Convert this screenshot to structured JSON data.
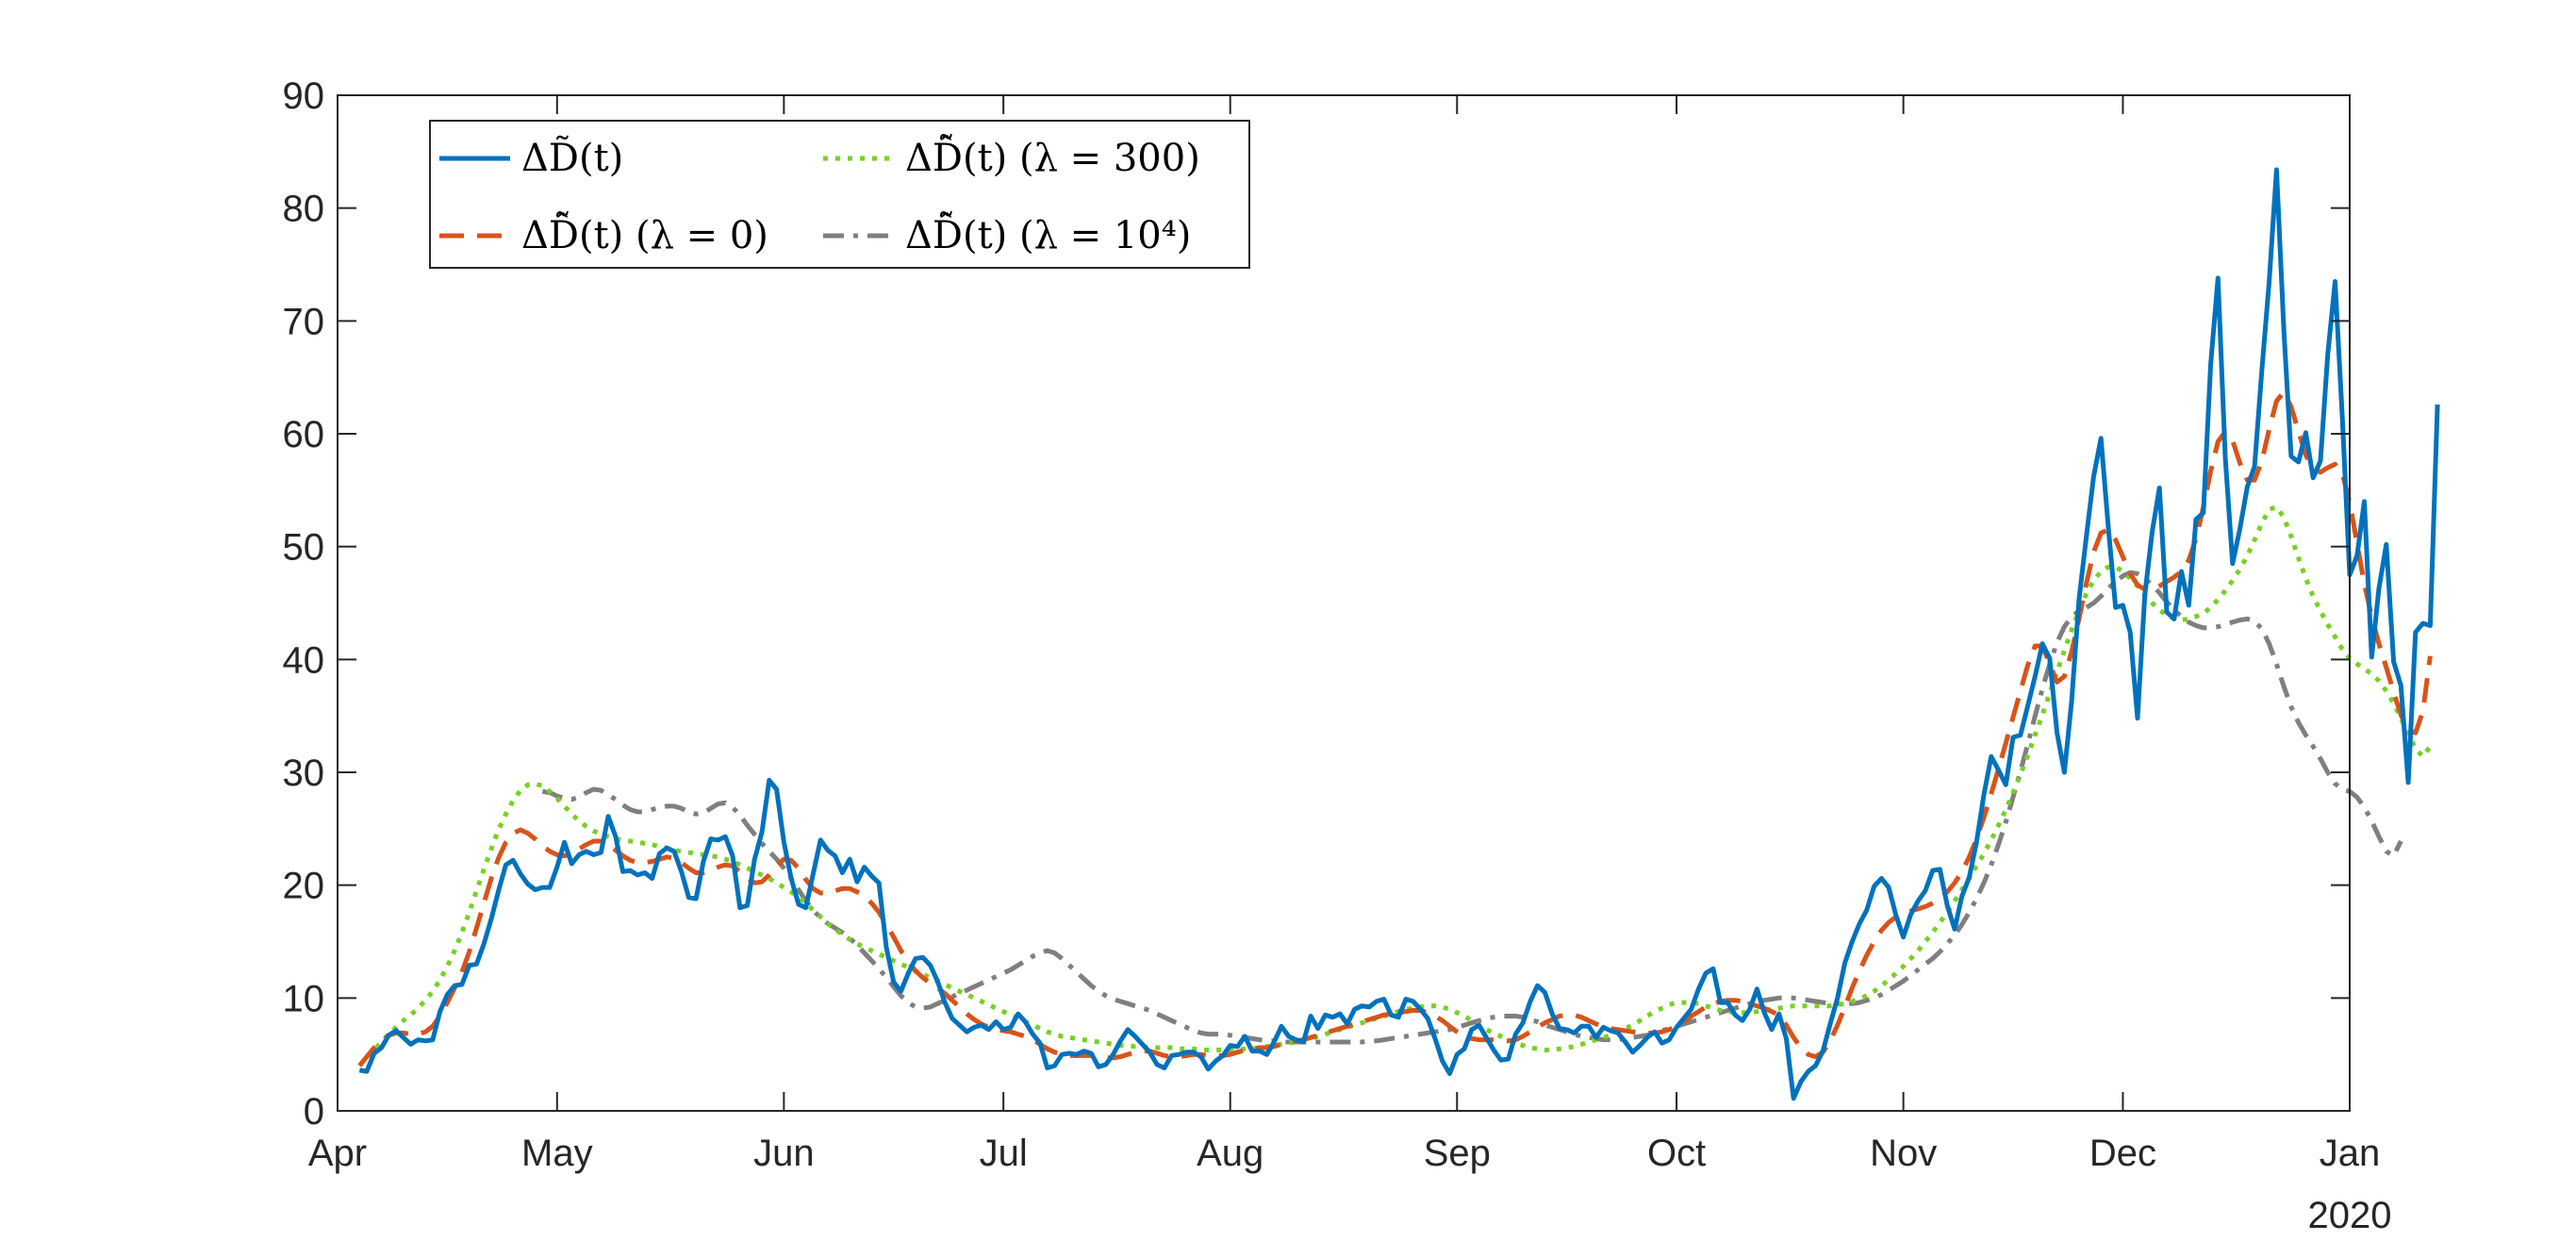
{
  "chart_data": {
    "type": "line",
    "title": "",
    "xlabel": "",
    "ylabel": "",
    "ylim": [
      0,
      90
    ],
    "xlim": [
      "2020-04-01",
      "2021-01-01"
    ],
    "x_start": "2020-04-04",
    "x_step_days": 1,
    "year_label": "2020",
    "x_ticks": [
      {
        "date": "2020-04-01",
        "label": "Apr"
      },
      {
        "date": "2020-05-01",
        "label": "May"
      },
      {
        "date": "2020-06-01",
        "label": "Jun"
      },
      {
        "date": "2020-07-01",
        "label": "Jul"
      },
      {
        "date": "2020-08-01",
        "label": "Aug"
      },
      {
        "date": "2020-09-01",
        "label": "Sep"
      },
      {
        "date": "2020-10-01",
        "label": "Oct"
      },
      {
        "date": "2020-11-01",
        "label": "Nov"
      },
      {
        "date": "2020-12-01",
        "label": "Dec"
      },
      {
        "date": "2021-01-01",
        "label": "Jan"
      }
    ],
    "y_ticks": [
      0,
      10,
      20,
      30,
      40,
      50,
      60,
      70,
      80,
      90
    ],
    "grid": false,
    "legend_position": "top-left",
    "series": [
      {
        "name": "ΔD̃(t)",
        "color": "#0072BD",
        "style": "solid",
        "values": [
          3.6,
          3.5,
          5.1,
          5.6,
          6.7,
          7.1,
          6.5,
          5.9,
          6.3,
          6.2,
          6.3,
          8.8,
          10.3,
          11.1,
          11.2,
          12.9,
          13.0,
          14.8,
          17.0,
          19.5,
          21.8,
          22.2,
          21.0,
          20.1,
          19.6,
          19.8,
          19.8,
          21.6,
          23.8,
          21.9,
          22.7,
          23.0,
          22.7,
          22.9,
          26.1,
          24.3,
          21.2,
          21.3,
          20.9,
          21.1,
          20.6,
          22.8,
          23.3,
          23.0,
          21.2,
          18.9,
          18.8,
          22.1,
          24.1,
          24.0,
          24.3,
          22.6,
          18.0,
          18.2,
          22.3,
          24.7,
          29.3,
          28.5,
          23.8,
          20.6,
          18.3,
          18.0,
          21.0,
          24.0,
          23.1,
          22.6,
          21.1,
          22.3,
          20.3,
          21.6,
          20.8,
          20.2,
          14.5,
          11.4,
          10.6,
          12.2,
          13.5,
          13.6,
          12.9,
          11.5,
          9.6,
          8.2,
          7.6,
          7.0,
          7.4,
          7.6,
          7.2,
          7.9,
          7.2,
          7.4,
          8.6,
          7.9,
          6.8,
          6.0,
          3.8,
          4.0,
          5.0,
          5.1,
          5.0,
          5.3,
          5.1,
          3.9,
          4.1,
          5.0,
          6.2,
          7.2,
          6.6,
          5.9,
          5.2,
          4.1,
          3.8,
          4.9,
          5.0,
          5.2,
          5.2,
          4.8,
          3.7,
          4.4,
          4.9,
          5.8,
          5.7,
          6.6,
          5.3,
          5.3,
          5.0,
          6.1,
          7.5,
          6.6,
          6.3,
          6.1,
          8.4,
          7.3,
          8.5,
          8.3,
          8.6,
          7.7,
          9.0,
          9.3,
          9.2,
          9.7,
          9.9,
          8.5,
          8.3,
          9.9,
          9.7,
          9.0,
          8.2,
          6.4,
          4.4,
          3.3,
          5.0,
          5.5,
          7.2,
          7.6,
          6.5,
          5.4,
          4.5,
          4.6,
          6.8,
          7.8,
          9.7,
          11.1,
          10.5,
          8.6,
          7.3,
          7.2,
          6.9,
          7.5,
          7.5,
          6.5,
          7.4,
          7.1,
          6.9,
          6.1,
          5.2,
          5.8,
          6.5,
          7.0,
          6.0,
          6.3,
          7.4,
          8.2,
          9.0,
          10.8,
          12.2,
          12.6,
          9.6,
          9.6,
          8.5,
          8.0,
          9.0,
          10.8,
          8.7,
          7.2,
          8.6,
          6.4,
          1.1,
          2.6,
          3.5,
          4.0,
          5.3,
          7.7,
          10.0,
          13.1,
          15.0,
          16.6,
          17.8,
          19.9,
          20.6,
          19.8,
          17.3,
          15.4,
          17.4,
          18.6,
          19.5,
          21.3,
          21.4,
          18.2,
          16.1,
          19.0,
          20.7,
          23.8,
          28.0,
          31.4,
          30.2,
          28.9,
          33.1,
          33.3,
          35.9,
          38.5,
          41.4,
          40.1,
          33.5,
          30.0,
          36.3,
          45.3,
          50.8,
          56.2,
          59.6,
          51.8,
          44.6,
          44.8,
          42.4,
          34.8,
          45.7,
          51.3,
          55.2,
          44.2,
          43.6,
          47.8,
          44.8,
          52.4,
          53.0,
          66.2,
          73.8,
          57.8,
          48.5,
          51.6,
          55.3,
          57.1,
          65.7,
          73.5,
          83.4,
          69.1,
          58.0,
          57.5,
          60.1,
          56.1,
          57.6,
          67.0,
          73.5,
          61.4,
          47.5,
          49.2,
          54.0,
          40.2,
          46.3,
          50.2,
          39.8,
          37.7,
          29.1,
          42.4,
          43.2,
          43.0,
          62.6
        ]
      },
      {
        "name": "ΔD̂̃(t) (λ = 0)",
        "color": "#D95319",
        "style": "dash",
        "values": [
          4.0,
          4.8,
          5.6,
          6.2,
          6.7,
          6.9,
          6.9,
          6.8,
          6.8,
          7.0,
          7.5,
          8.4,
          9.6,
          10.9,
          12.3,
          14.1,
          16.2,
          18.4,
          20.6,
          22.4,
          23.8,
          24.6,
          24.9,
          24.6,
          24.1,
          23.5,
          23.0,
          22.7,
          22.6,
          22.8,
          23.2,
          23.6,
          23.9,
          23.9,
          23.6,
          23.1,
          22.6,
          22.2,
          22.0,
          22.0,
          22.1,
          22.3,
          22.5,
          22.4,
          22.0,
          21.5,
          21.1,
          21.1,
          21.3,
          21.6,
          21.8,
          21.7,
          21.2,
          20.6,
          20.2,
          20.3,
          20.9,
          21.7,
          22.3,
          22.2,
          21.5,
          20.5,
          19.7,
          19.3,
          19.3,
          19.5,
          19.7,
          19.7,
          19.4,
          19.0,
          18.4,
          17.6,
          16.5,
          15.4,
          14.2,
          13.2,
          12.4,
          11.8,
          11.3,
          10.9,
          10.4,
          9.8,
          9.2,
          8.6,
          8.1,
          7.7,
          7.4,
          7.2,
          7.1,
          7.0,
          6.8,
          6.6,
          6.3,
          5.9,
          5.5,
          5.2,
          5.0,
          4.9,
          4.9,
          4.9,
          4.9,
          4.8,
          4.7,
          4.7,
          4.8,
          5.0,
          5.2,
          5.3,
          5.3,
          5.1,
          4.9,
          4.8,
          4.8,
          4.9,
          5.0,
          5.0,
          4.9,
          4.9,
          4.9,
          5.0,
          5.2,
          5.4,
          5.5,
          5.6,
          5.6,
          5.7,
          5.9,
          6.1,
          6.2,
          6.3,
          6.5,
          6.7,
          6.9,
          7.1,
          7.3,
          7.5,
          7.7,
          7.9,
          8.1,
          8.3,
          8.5,
          8.6,
          8.7,
          8.8,
          8.9,
          8.9,
          8.7,
          8.4,
          8.0,
          7.5,
          7.0,
          6.6,
          6.4,
          6.3,
          6.3,
          6.3,
          6.2,
          6.2,
          6.3,
          6.6,
          7.0,
          7.4,
          7.8,
          8.1,
          8.4,
          8.5,
          8.5,
          8.3,
          8.0,
          7.7,
          7.5,
          7.3,
          7.2,
          7.1,
          7.0,
          6.9,
          6.9,
          6.9,
          7.0,
          7.2,
          7.5,
          7.9,
          8.4,
          8.8,
          9.2,
          9.5,
          9.7,
          9.8,
          9.8,
          9.7,
          9.5,
          9.3,
          9.1,
          8.8,
          8.5,
          7.6,
          6.5,
          5.6,
          5.0,
          4.8,
          5.2,
          6.2,
          7.6,
          9.2,
          10.9,
          12.4,
          13.8,
          15.0,
          16.0,
          16.7,
          17.2,
          17.5,
          17.7,
          17.9,
          18.1,
          18.4,
          18.8,
          19.4,
          20.2,
          21.2,
          22.5,
          24.1,
          26.0,
          28.1,
          30.3,
          32.6,
          34.9,
          37.2,
          39.5,
          41.2,
          41.2,
          39.6,
          38.0,
          38.5,
          40.7,
          43.6,
          46.7,
          49.5,
          51.2,
          51.5,
          50.6,
          49.1,
          47.6,
          46.6,
          46.2,
          46.2,
          46.5,
          46.9,
          47.3,
          47.8,
          48.8,
          50.7,
          53.5,
          56.7,
          59.3,
          60.2,
          59.4,
          57.4,
          55.9,
          55.9,
          57.6,
          60.4,
          62.9,
          63.7,
          62.4,
          60.2,
          58.1,
          56.9,
          56.6,
          57.0,
          57.3,
          56.5,
          53.9,
          50.3,
          46.7,
          43.8,
          41.4,
          39.3,
          37.1,
          35.1,
          33.7,
          33.5,
          35.4,
          40.3
        ]
      },
      {
        "name": "ΔD̂̃(t) (λ = 300)",
        "color": "#77D122",
        "style": "dot",
        "values": [
          4.0,
          4.7,
          5.4,
          6.1,
          6.8,
          7.4,
          8.0,
          8.5,
          9.1,
          9.8,
          10.6,
          11.6,
          12.8,
          14.2,
          15.8,
          17.6,
          19.5,
          21.4,
          23.2,
          24.9,
          26.3,
          27.5,
          28.4,
          28.9,
          29.0,
          28.8,
          28.3,
          27.7,
          27.0,
          26.3,
          25.7,
          25.2,
          24.8,
          24.5,
          24.3,
          24.1,
          24.0,
          23.9,
          23.8,
          23.7,
          23.6,
          23.4,
          23.3,
          23.1,
          23.0,
          22.9,
          22.8,
          22.7,
          22.6,
          22.5,
          22.3,
          22.1,
          21.8,
          21.5,
          21.2,
          20.9,
          20.6,
          20.2,
          19.8,
          19.4,
          18.9,
          18.4,
          17.8,
          17.2,
          16.6,
          16.1,
          15.6,
          15.2,
          14.8,
          14.5,
          14.2,
          13.9,
          13.6,
          13.3,
          13.0,
          12.7,
          12.4,
          12.1,
          11.8,
          11.5,
          11.2,
          10.9,
          10.6,
          10.3,
          10.0,
          9.7,
          9.4,
          9.1,
          8.8,
          8.5,
          8.2,
          7.9,
          7.6,
          7.3,
          7.0,
          6.8,
          6.6,
          6.5,
          6.4,
          6.3,
          6.2,
          6.1,
          6.0,
          5.9,
          5.8,
          5.8,
          5.7,
          5.7,
          5.6,
          5.6,
          5.6,
          5.6,
          5.5,
          5.5,
          5.5,
          5.4,
          5.4,
          5.4,
          5.4,
          5.4,
          5.4,
          5.5,
          5.5,
          5.6,
          5.7,
          5.8,
          5.9,
          6.0,
          6.1,
          6.3,
          6.4,
          6.6,
          6.8,
          7.0,
          7.2,
          7.4,
          7.6,
          7.8,
          8.0,
          8.2,
          8.4,
          8.6,
          8.8,
          9.0,
          9.1,
          9.2,
          9.3,
          9.3,
          9.2,
          9.0,
          8.7,
          8.4,
          8.0,
          7.6,
          7.2,
          6.9,
          6.6,
          6.3,
          6.0,
          5.8,
          5.6,
          5.5,
          5.4,
          5.4,
          5.5,
          5.6,
          5.7,
          5.9,
          6.1,
          6.3,
          6.5,
          6.7,
          7.0,
          7.3,
          7.6,
          8.0,
          8.4,
          8.8,
          9.1,
          9.4,
          9.6,
          9.6,
          9.6,
          9.5,
          9.3,
          9.1,
          8.9,
          8.8,
          8.7,
          8.7,
          8.7,
          8.8,
          8.9,
          9.0,
          9.1,
          9.2,
          9.3,
          9.3,
          9.3,
          9.3,
          9.3,
          9.3,
          9.4,
          9.5,
          9.7,
          9.9,
          10.2,
          10.6,
          11.1,
          11.6,
          12.2,
          12.8,
          13.5,
          14.2,
          15.0,
          15.8,
          16.7,
          17.6,
          18.6,
          19.6,
          20.6,
          21.7,
          22.8,
          24.0,
          25.3,
          26.7,
          28.2,
          29.8,
          31.5,
          33.3,
          35.1,
          37.0,
          38.9,
          40.8,
          42.6,
          44.3,
          45.8,
          47.0,
          47.8,
          48.2,
          48.2,
          47.8,
          47.2,
          46.5,
          45.7,
          45.0,
          44.4,
          43.9,
          43.6,
          43.5,
          43.6,
          43.8,
          44.1,
          44.6,
          45.3,
          46.1,
          47.0,
          48.0,
          49.2,
          50.6,
          52.1,
          53.3,
          53.5,
          52.6,
          50.9,
          49.0,
          47.2,
          45.6,
          44.3,
          43.1,
          42.0,
          40.9,
          40.1,
          39.6,
          39.2,
          38.7,
          38.1,
          37.2,
          36.1,
          34.8,
          33.4,
          32.1,
          31.4,
          32.3
        ]
      },
      {
        "name": "ΔD̂̃(t) (λ = 10⁴)",
        "color": "#7F7F7F",
        "style": "dashdot",
        "values": [
          null,
          null,
          null,
          null,
          null,
          null,
          null,
          null,
          null,
          null,
          null,
          null,
          null,
          null,
          null,
          null,
          null,
          null,
          null,
          null,
          null,
          null,
          null,
          null,
          null,
          28.3,
          28.2,
          27.9,
          27.7,
          27.6,
          27.8,
          28.2,
          28.5,
          28.4,
          28.0,
          27.6,
          27.1,
          26.7,
          26.5,
          26.5,
          26.7,
          26.9,
          27.0,
          27.0,
          26.8,
          26.5,
          26.3,
          26.4,
          26.8,
          27.2,
          27.3,
          26.9,
          26.2,
          25.3,
          24.5,
          23.7,
          23.0,
          22.3,
          21.5,
          20.6,
          19.6,
          18.6,
          17.8,
          17.1,
          16.6,
          16.2,
          15.8,
          15.3,
          14.7,
          14.0,
          13.3,
          12.6,
          11.8,
          11.0,
          10.2,
          9.6,
          9.2,
          9.1,
          9.2,
          9.5,
          9.8,
          10.1,
          10.4,
          10.7,
          11.0,
          11.3,
          11.6,
          11.9,
          12.2,
          12.5,
          12.9,
          13.3,
          13.7,
          14.0,
          14.2,
          14.0,
          13.5,
          12.9,
          12.3,
          11.7,
          11.1,
          10.6,
          10.2,
          9.9,
          9.7,
          9.5,
          9.3,
          9.1,
          8.9,
          8.6,
          8.3,
          8.0,
          7.7,
          7.4,
          7.1,
          6.9,
          6.8,
          6.8,
          6.8,
          6.7,
          6.6,
          6.5,
          6.4,
          6.3,
          6.2,
          6.2,
          6.1,
          6.1,
          6.1,
          6.1,
          6.1,
          6.1,
          6.1,
          6.1,
          6.1,
          6.1,
          6.1,
          6.1,
          6.2,
          6.2,
          6.3,
          6.4,
          6.5,
          6.6,
          6.7,
          6.8,
          6.9,
          7.0,
          7.1,
          7.2,
          7.4,
          7.6,
          7.8,
          8.0,
          8.2,
          8.3,
          8.4,
          8.4,
          8.4,
          8.3,
          8.1,
          7.9,
          7.6,
          7.4,
          7.2,
          7.0,
          6.8,
          6.6,
          6.5,
          6.4,
          6.3,
          6.3,
          6.3,
          6.4,
          6.5,
          6.6,
          6.7,
          6.9,
          7.1,
          7.3,
          7.5,
          7.7,
          7.9,
          8.1,
          8.3,
          8.5,
          8.7,
          8.9,
          9.1,
          9.3,
          9.5,
          9.7,
          9.8,
          9.9,
          10.0,
          10.0,
          10.0,
          9.9,
          9.8,
          9.7,
          9.6,
          9.5,
          9.5,
          9.5,
          9.5,
          9.6,
          9.8,
          10.0,
          10.3,
          10.7,
          11.1,
          11.5,
          12.0,
          12.5,
          13.0,
          13.5,
          14.1,
          14.8,
          15.6,
          16.5,
          17.6,
          18.8,
          20.2,
          21.8,
          23.6,
          25.6,
          27.8,
          30.1,
          32.5,
          35.0,
          37.4,
          39.6,
          41.5,
          42.9,
          43.8,
          44.3,
          44.6,
          45.0,
          45.6,
          46.3,
          46.9,
          47.4,
          47.7,
          47.6,
          47.2,
          46.6,
          45.9,
          45.1,
          44.4,
          43.8,
          43.3,
          43.0,
          42.8,
          42.8,
          42.9,
          43.1,
          43.3,
          43.5,
          43.6,
          43.4,
          42.7,
          41.4,
          39.6,
          37.6,
          35.8,
          34.4,
          33.3,
          32.3,
          31.2,
          30.0,
          29.0,
          28.5,
          28.3,
          27.8,
          26.9,
          25.7,
          24.3,
          23.0,
          22.6,
          23.9
        ]
      }
    ]
  }
}
